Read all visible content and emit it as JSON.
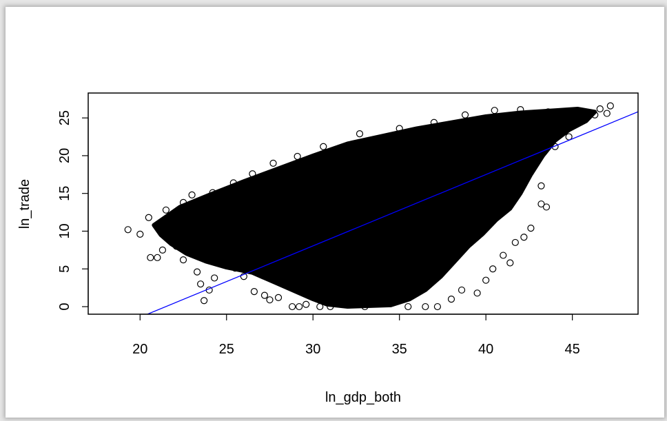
{
  "chart_data": {
    "type": "scatter",
    "xlabel": "ln_gdp_both",
    "ylabel": "ln_trade",
    "xlim": [
      17,
      48.8
    ],
    "ylim": [
      -1,
      28.3
    ],
    "x_ticks": [
      20,
      25,
      30,
      35,
      40,
      45
    ],
    "y_ticks": [
      0,
      5,
      10,
      15,
      20,
      25
    ],
    "grid": false,
    "regression_line": {
      "intercept": -20.3,
      "slope": 0.945,
      "color": "#0000ff"
    },
    "point_color": "#000000",
    "points_outlier_sample": [
      [
        19.3,
        10.2
      ],
      [
        20.0,
        9.6
      ],
      [
        20.5,
        11.8
      ],
      [
        20.6,
        6.5
      ],
      [
        21.0,
        6.5
      ],
      [
        21.3,
        7.5
      ],
      [
        21.7,
        12.0
      ],
      [
        22.1,
        8.0
      ],
      [
        22.5,
        6.2
      ],
      [
        23.3,
        4.6
      ],
      [
        23.5,
        3.0
      ],
      [
        23.7,
        0.8
      ],
      [
        24.0,
        2.2
      ],
      [
        24.3,
        3.8
      ],
      [
        25.5,
        5.1
      ],
      [
        26.0,
        4.0
      ],
      [
        26.6,
        2.0
      ],
      [
        27.2,
        1.5
      ],
      [
        27.5,
        0.9
      ],
      [
        28.0,
        1.2
      ],
      [
        28.8,
        0.0
      ],
      [
        29.2,
        0.0
      ],
      [
        29.6,
        0.3
      ],
      [
        30.4,
        0.0
      ],
      [
        31.0,
        0.0
      ],
      [
        33.0,
        0.0
      ],
      [
        35.5,
        0.0
      ],
      [
        36.5,
        0.0
      ],
      [
        37.2,
        0.0
      ],
      [
        38.0,
        1.0
      ],
      [
        38.6,
        2.2
      ],
      [
        39.5,
        1.8
      ],
      [
        40.0,
        3.5
      ],
      [
        40.4,
        5.0
      ],
      [
        41.0,
        6.8
      ],
      [
        41.4,
        5.8
      ],
      [
        41.7,
        8.5
      ],
      [
        42.2,
        9.2
      ],
      [
        42.6,
        10.4
      ],
      [
        43.2,
        13.6
      ],
      [
        43.5,
        13.2
      ],
      [
        43.2,
        16.0
      ],
      [
        44.0,
        21.2
      ],
      [
        44.8,
        22.5
      ],
      [
        45.6,
        24.8
      ],
      [
        46.3,
        25.4
      ],
      [
        47.2,
        26.6
      ],
      [
        47.0,
        25.6
      ],
      [
        46.6,
        26.2
      ],
      [
        43.6,
        25.8
      ],
      [
        42.0,
        26.1
      ],
      [
        40.5,
        26.0
      ],
      [
        38.8,
        25.4
      ],
      [
        37.0,
        24.4
      ],
      [
        35.0,
        23.6
      ],
      [
        32.7,
        22.9
      ],
      [
        30.6,
        21.2
      ],
      [
        29.1,
        19.9
      ],
      [
        27.7,
        19.0
      ],
      [
        26.5,
        17.6
      ],
      [
        25.4,
        16.4
      ],
      [
        24.2,
        15.1
      ],
      [
        23.0,
        14.8
      ],
      [
        22.5,
        13.8
      ],
      [
        21.5,
        12.8
      ]
    ],
    "dense_region_polygon": [
      [
        20.8,
        10.8
      ],
      [
        22.3,
        13.2
      ],
      [
        24.0,
        14.8
      ],
      [
        26.0,
        16.6
      ],
      [
        28.0,
        18.3
      ],
      [
        30.0,
        20.0
      ],
      [
        32.0,
        21.6
      ],
      [
        34.0,
        22.6
      ],
      [
        36.0,
        23.6
      ],
      [
        38.0,
        24.4
      ],
      [
        40.0,
        25.2
      ],
      [
        42.0,
        25.7
      ],
      [
        44.0,
        26.0
      ],
      [
        45.3,
        26.2
      ],
      [
        46.3,
        25.8
      ],
      [
        45.8,
        24.6
      ],
      [
        44.8,
        23.4
      ],
      [
        44.0,
        22.0
      ],
      [
        43.3,
        20.0
      ],
      [
        42.6,
        17.5
      ],
      [
        42.0,
        15.0
      ],
      [
        41.4,
        13.0
      ],
      [
        40.6,
        11.5
      ],
      [
        39.8,
        9.6
      ],
      [
        39.0,
        8.0
      ],
      [
        38.2,
        6.0
      ],
      [
        37.4,
        4.0
      ],
      [
        36.5,
        2.2
      ],
      [
        35.6,
        1.0
      ],
      [
        34.5,
        0.2
      ],
      [
        32.0,
        0.0
      ],
      [
        30.8,
        0.3
      ],
      [
        30.0,
        1.0
      ],
      [
        29.0,
        2.0
      ],
      [
        28.0,
        3.0
      ],
      [
        26.5,
        4.5
      ],
      [
        25.0,
        5.2
      ],
      [
        23.8,
        6.0
      ],
      [
        22.7,
        7.0
      ],
      [
        21.8,
        8.3
      ],
      [
        21.2,
        9.5
      ]
    ]
  }
}
